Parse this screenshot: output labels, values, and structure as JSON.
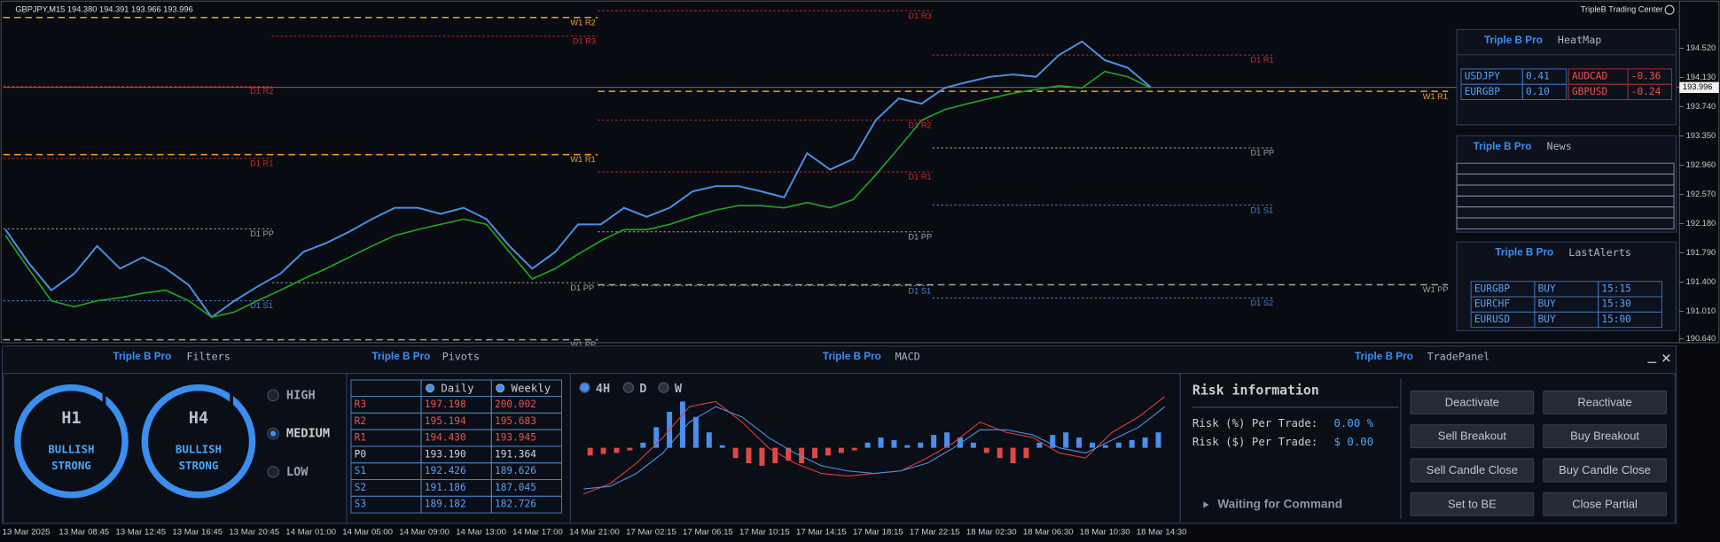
{
  "header": {
    "symbol_info": "GBPJPY,M15  194.380 194.391 193.966 193.996",
    "brand": "TripleB Trading Center"
  },
  "chart_data": {
    "type": "line",
    "series": [
      {
        "color": "#4a90e2",
        "values": [
          192.1,
          191.66,
          191.29,
          191.51,
          191.88,
          191.58,
          191.73,
          191.58,
          191.36,
          190.93,
          191.15,
          191.34,
          191.51,
          191.8,
          191.92,
          192.07,
          192.24,
          192.39,
          192.39,
          192.31,
          192.39,
          192.24,
          191.88,
          191.58,
          191.8,
          192.17,
          192.17,
          192.39,
          192.27,
          192.39,
          192.61,
          192.68,
          192.68,
          192.61,
          192.53,
          193.12,
          192.9,
          193.04,
          193.56,
          193.85,
          193.78,
          193.99,
          194.07,
          194.14,
          194.17,
          194.14,
          194.43,
          194.61,
          194.36,
          194.26,
          194.0
        ]
      },
      {
        "color": "#1fa81f",
        "values": [
          192.02,
          191.58,
          191.15,
          191.07,
          191.15,
          191.19,
          191.25,
          191.29,
          191.15,
          190.93,
          191.0,
          191.15,
          191.29,
          191.44,
          191.58,
          191.73,
          191.88,
          192.02,
          192.1,
          192.17,
          192.24,
          192.17,
          191.8,
          191.44,
          191.58,
          191.77,
          191.95,
          192.1,
          192.1,
          192.17,
          192.27,
          192.36,
          192.42,
          192.42,
          192.39,
          192.46,
          192.39,
          192.5,
          192.83,
          193.19,
          193.56,
          193.7,
          193.78,
          193.85,
          193.92,
          193.97,
          194.02,
          193.99,
          194.21,
          194.14,
          193.99
        ]
      }
    ],
    "ylim": [
      190.59,
      195.12
    ],
    "yticks": [
      {
        "value": 194.52,
        "label": "194.520"
      },
      {
        "value": 194.13,
        "label": "194.130"
      },
      {
        "value": 193.74,
        "label": "193.740"
      },
      {
        "value": 193.35,
        "label": "193.350"
      },
      {
        "value": 192.96,
        "label": "192.960"
      },
      {
        "value": 192.57,
        "label": "192.570"
      },
      {
        "value": 192.18,
        "label": "192.180"
      },
      {
        "value": 191.79,
        "label": "191.790"
      },
      {
        "value": 191.4,
        "label": "191.400"
      },
      {
        "value": 191.01,
        "label": "191.010"
      },
      {
        "value": 190.64,
        "label": "190.640"
      }
    ],
    "current_price": 193.996,
    "time_labels": [
      "13 Mar 2025",
      "13 Mar 08:45",
      "13 Mar 12:45",
      "13 Mar 16:45",
      "13 Mar 20:45",
      "14 Mar 01:00",
      "14 Mar 05:00",
      "14 Mar 09:00",
      "14 Mar 13:00",
      "14 Mar 17:00",
      "14 Mar 21:00",
      "17 Mar 02:15",
      "17 Mar 06:15",
      "17 Mar 10:15",
      "17 Mar 14:15",
      "17 Mar 18:15",
      "17 Mar 22:15",
      "18 Mar 02:30",
      "18 Mar 06:30",
      "18 Mar 10:30",
      "18 Mar 14:30"
    ],
    "levels": [
      {
        "label": "W1 R2",
        "value": 194.93,
        "color": "#f0a020",
        "style": "dashed"
      },
      {
        "label": "D1 R3",
        "value": 194.68,
        "color": "#d02828",
        "style": "dotted"
      },
      {
        "label": "D1 R2",
        "value": 194.01,
        "color": "#d02828",
        "style": "dotted"
      },
      {
        "label": "D1 R1",
        "value": 193.05,
        "color": "#d02828",
        "style": "dotted"
      },
      {
        "label": "W1 R1",
        "value": 193.1,
        "color": "#f0a020",
        "style": "dashed"
      },
      {
        "label": "D1 PP",
        "value": 192.11,
        "color": "#a0a0a0",
        "style": "dotted"
      },
      {
        "label": "D1 S1",
        "value": 191.15,
        "color": "#4a80d0",
        "style": "dotted"
      },
      {
        "label": "D1 PP",
        "value": 191.39,
        "color": "#a0a0a0",
        "style": "dotted"
      },
      {
        "label": "W1 PP",
        "value": 190.63,
        "color": "#a0a0a0",
        "style": "dashed"
      },
      {
        "label": "D1 R3",
        "value": 195.02,
        "color": "#d02828",
        "style": "dotted"
      },
      {
        "label": "D1 R2",
        "value": 193.56,
        "color": "#d02828",
        "style": "dotted"
      },
      {
        "label": "D1 R1",
        "value": 192.87,
        "color": "#d02828",
        "style": "dotted"
      },
      {
        "label": "D1 PP",
        "value": 192.07,
        "color": "#a0a0a0",
        "style": "dotted"
      },
      {
        "label": "D1 S1",
        "value": 191.35,
        "color": "#4a80d0",
        "style": "dotted"
      },
      {
        "label": "D1 R1",
        "value": 194.43,
        "color": "#d02828",
        "style": "dotted"
      },
      {
        "label": "D1 PP",
        "value": 193.19,
        "color": "#a0a0a0",
        "style": "dotted"
      },
      {
        "label": "D1 S1",
        "value": 192.426,
        "color": "#4a80d0",
        "style": "dotted"
      },
      {
        "label": "D1 S2",
        "value": 191.186,
        "color": "#4a80d0",
        "style": "dotted"
      },
      {
        "label": "W1 R1",
        "value": 193.945,
        "color": "#f0a020",
        "style": "dashed"
      },
      {
        "label": "W1 PP",
        "value": 191.364,
        "color": "#a0a0a0",
        "style": "dashed"
      }
    ]
  },
  "heatmap": {
    "brand": "Triple B Pro",
    "title": "HeatMap",
    "rows": [
      [
        "USDJPY",
        "0.41",
        "AUDCAD",
        "-0.36"
      ],
      [
        "EURGBP",
        "0.10",
        "GBPUSD",
        "-0.24"
      ]
    ]
  },
  "news": {
    "brand": "Triple B Pro",
    "title": "News"
  },
  "alerts": {
    "brand": "Triple B Pro",
    "title": "LastAlerts",
    "rows": [
      [
        "EURGBP",
        "BUY",
        "15:15"
      ],
      [
        "EURCHF",
        "BUY",
        "15:30"
      ],
      [
        "EURUSD",
        "BUY",
        "15:00"
      ]
    ]
  },
  "filters": {
    "brand": "Triple B Pro",
    "title": "Filters",
    "gauges": [
      {
        "timeframe": "H1",
        "line1": "BULLISH",
        "line2": "STRONG"
      },
      {
        "timeframe": "H4",
        "line1": "BULLISH",
        "line2": "STRONG"
      }
    ],
    "options": [
      "HIGH",
      "MEDIUM",
      "LOW"
    ],
    "selected_option": 1
  },
  "pivots": {
    "brand": "Triple B Pro",
    "title": "Pivots",
    "columns": [
      "Daily",
      "Weekly"
    ],
    "rows": [
      [
        "R3",
        "197.198",
        "200.002"
      ],
      [
        "R2",
        "195.194",
        "195.683"
      ],
      [
        "R1",
        "194.430",
        "193.945"
      ],
      [
        "P0",
        "193.190",
        "191.364"
      ],
      [
        "S1",
        "192.426",
        "189.626"
      ],
      [
        "S2",
        "191.186",
        "187.045"
      ],
      [
        "S3",
        "189.182",
        "182.726"
      ]
    ]
  },
  "macd": {
    "brand": "Triple B Pro",
    "title": "MACD",
    "tabs": [
      "4H",
      "D",
      "W"
    ],
    "selected_tab": 0,
    "ylim": [
      -1.3,
      1.0
    ],
    "histogram": [
      -0.15,
      -0.12,
      -0.1,
      -0.05,
      0.1,
      0.4,
      0.7,
      0.9,
      0.6,
      0.3,
      0.05,
      -0.2,
      -0.3,
      -0.35,
      -0.3,
      -0.25,
      -0.3,
      -0.2,
      -0.15,
      -0.1,
      -0.05,
      0.1,
      0.2,
      0.15,
      0.05,
      0.1,
      0.25,
      0.3,
      0.2,
      0.1,
      -0.1,
      -0.2,
      -0.3,
      -0.2,
      0.1,
      0.25,
      0.3,
      0.2,
      0.1,
      0.05,
      0.1,
      0.15,
      0.2,
      0.3
    ],
    "lines": [
      {
        "color": "#e03a3a",
        "values": [
          -0.9,
          -0.7,
          -0.3,
          0.2,
          0.8,
          0.9,
          0.5,
          0.0,
          -0.3,
          -0.5,
          -0.55,
          -0.5,
          -0.45,
          -0.2,
          0.1,
          0.5,
          0.3,
          0.2,
          -0.1,
          -0.2,
          0.3,
          0.6,
          1.0
        ]
      },
      {
        "color": "#4a90e2",
        "values": [
          -0.8,
          -0.75,
          -0.5,
          -0.1,
          0.5,
          0.8,
          0.6,
          0.2,
          -0.1,
          -0.35,
          -0.45,
          -0.5,
          -0.45,
          -0.3,
          0.0,
          0.35,
          0.35,
          0.25,
          0.0,
          -0.1,
          0.15,
          0.4,
          0.8
        ]
      }
    ]
  },
  "trade_panel": {
    "brand": "Triple B Pro",
    "title": "TradePanel",
    "risk_title": "Risk information",
    "risk_pct_label": "Risk (%) Per Trade:",
    "risk_pct_value": "0.00 %",
    "risk_usd_label": "Risk ($) Per Trade:",
    "risk_usd_value": "$ 0.00",
    "status": "Waiting for Command",
    "buttons": [
      "Deactivate",
      "Reactivate",
      "Sell Breakout",
      "Buy Breakout",
      "Sell Candle Close",
      "Buy Candle Close",
      "Set to BE",
      "Close Partial"
    ]
  }
}
